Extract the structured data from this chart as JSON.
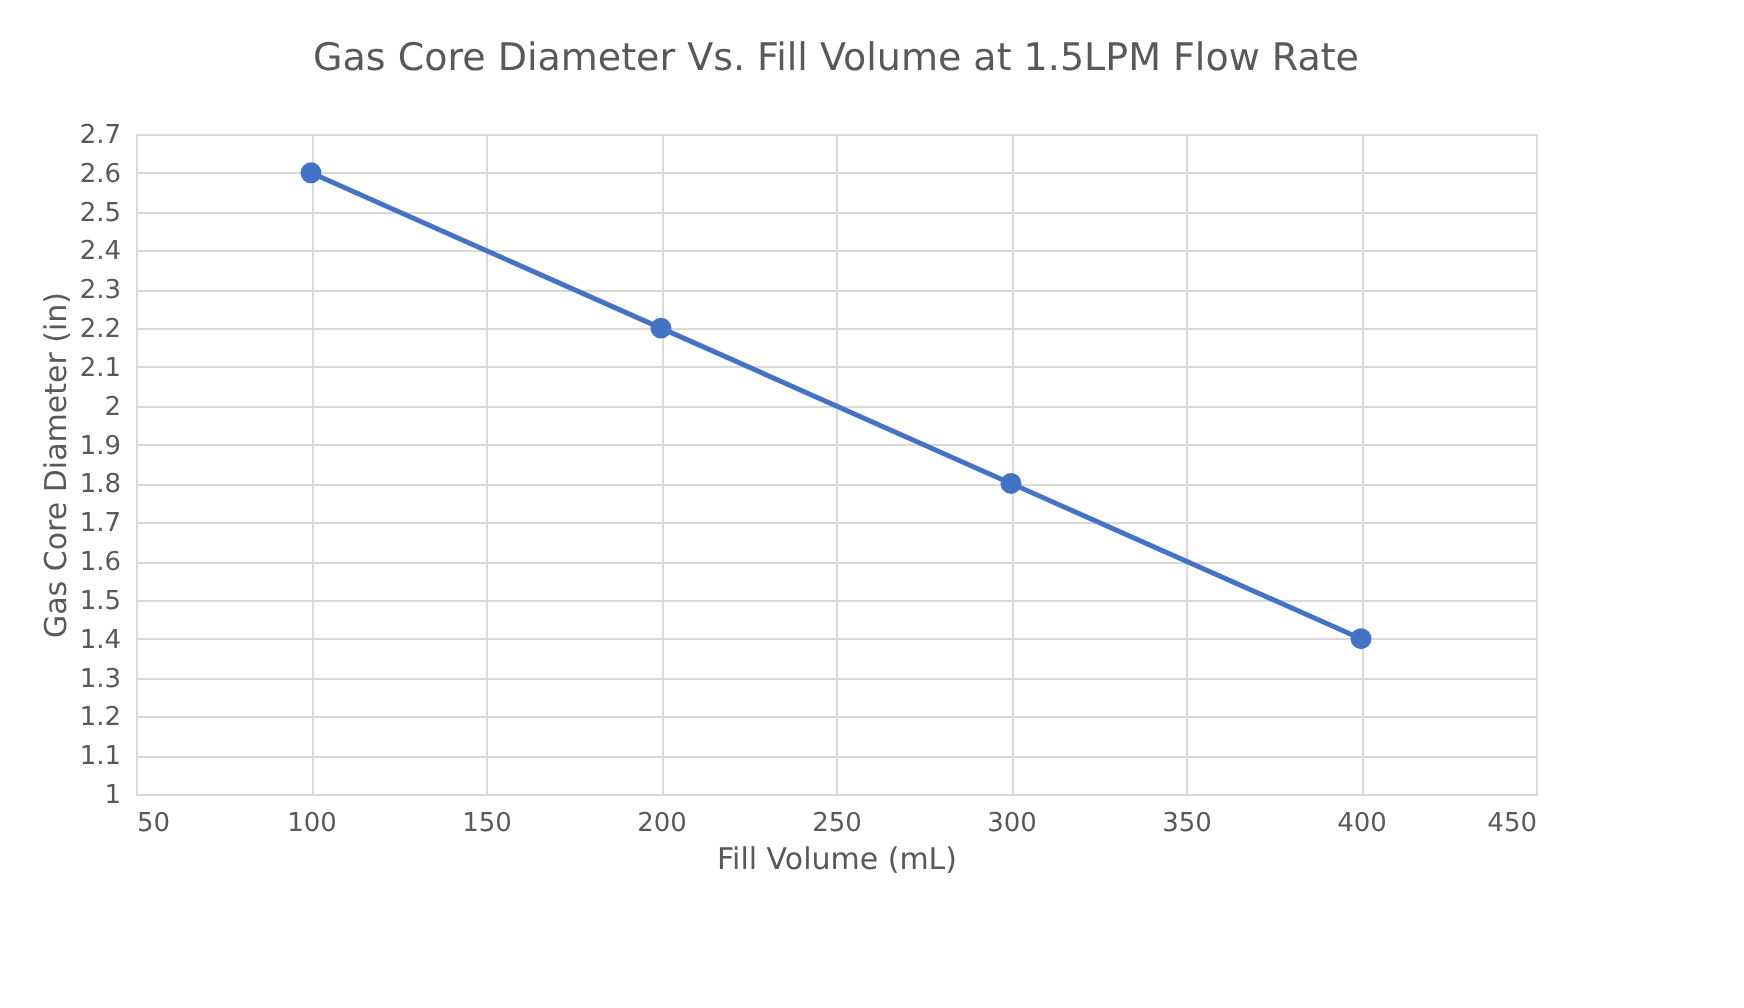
{
  "chart_data": {
    "type": "line",
    "title": "Gas Core Diameter Vs. Fill Volume at 1.5LPM Flow Rate",
    "xlabel": "Fill Volume (mL)",
    "ylabel": "Gas Core Diameter (in)",
    "x": [
      100,
      200,
      300,
      400
    ],
    "series": [
      {
        "color": "#4472c4",
        "values": [
          2.6,
          2.2,
          1.8,
          1.4
        ]
      }
    ],
    "xlim": [
      50,
      450
    ],
    "xticks": [
      50,
      100,
      150,
      200,
      250,
      300,
      350,
      400,
      450
    ],
    "ylim": [
      1,
      2.7
    ],
    "yticks": [
      1,
      1.1,
      1.2,
      1.3,
      1.4,
      1.5,
      1.6,
      1.7,
      1.8,
      1.9,
      2,
      2.1,
      2.2,
      2.3,
      2.4,
      2.5,
      2.6,
      2.7
    ],
    "grid": true,
    "marker": "circle",
    "line_style": "solid"
  }
}
